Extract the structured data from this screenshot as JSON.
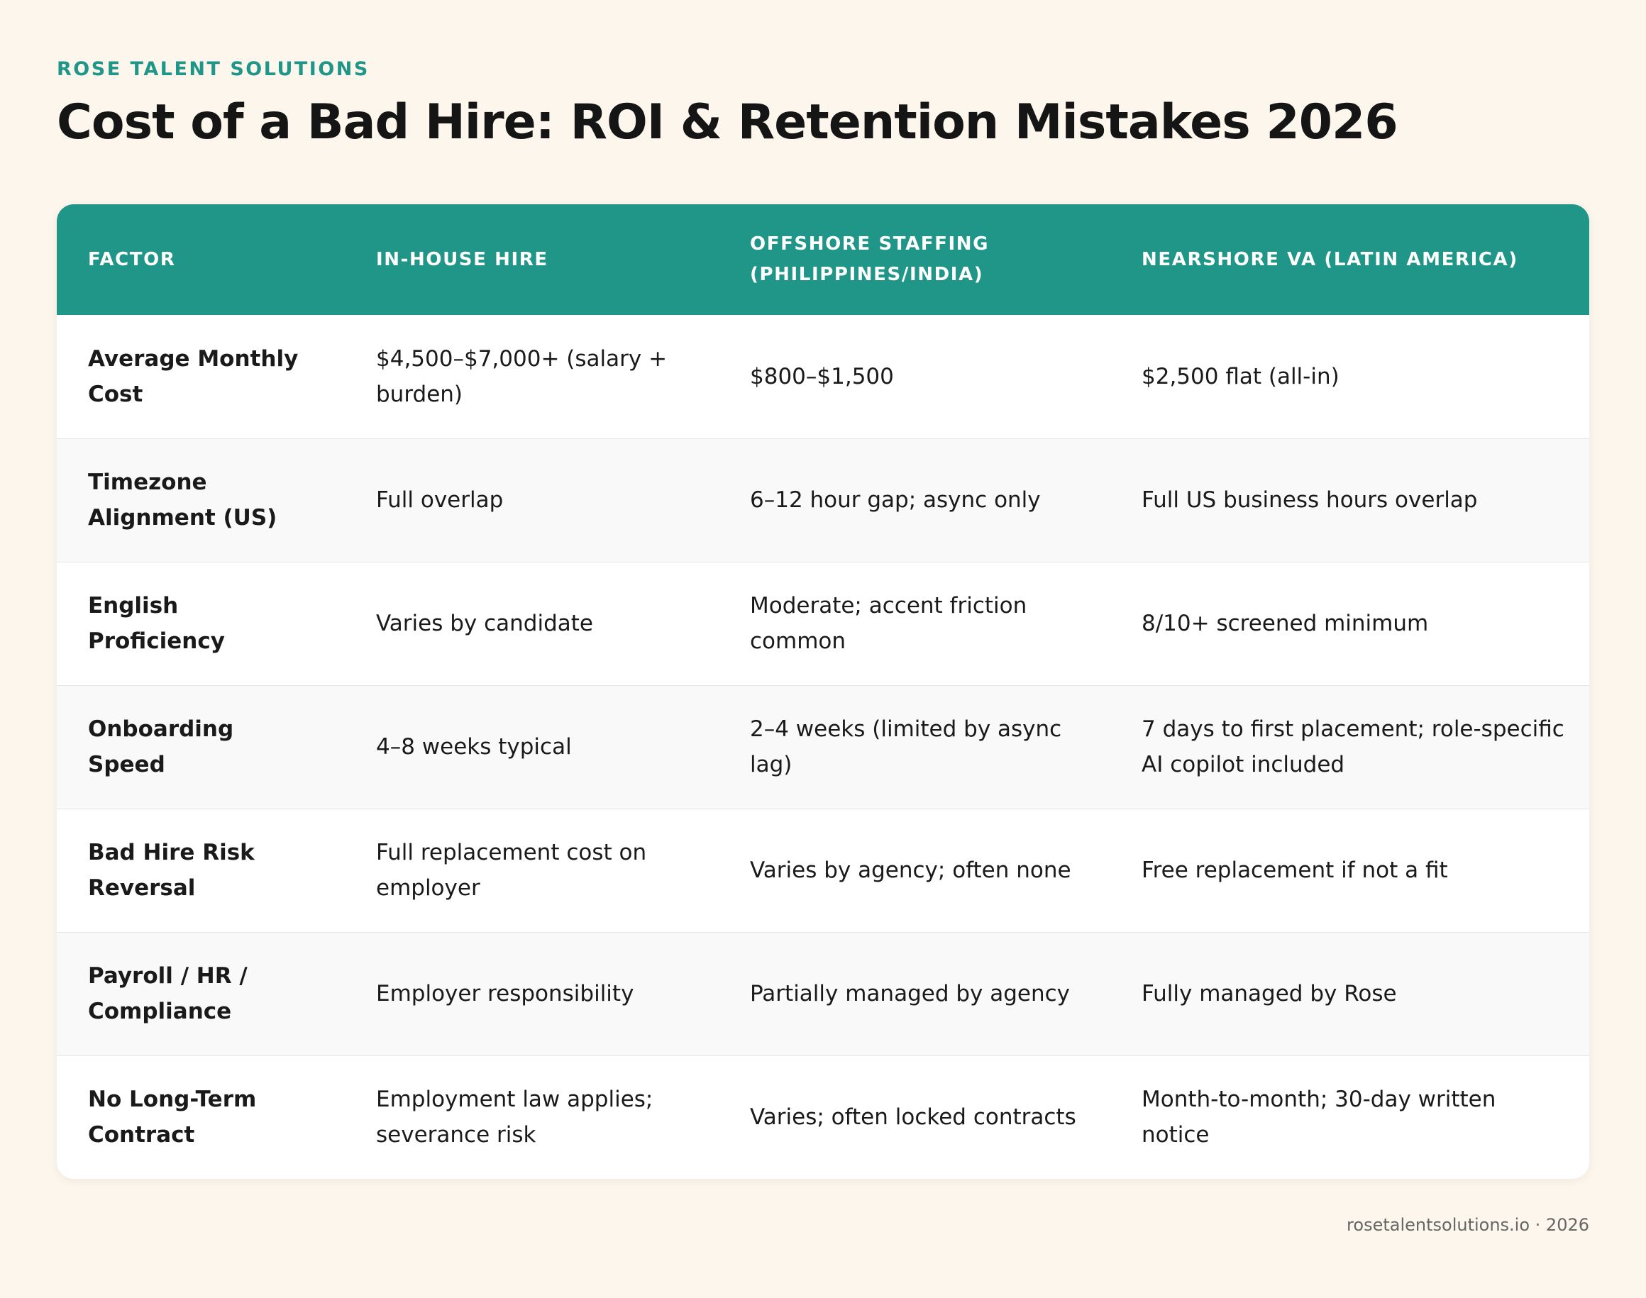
{
  "brand": "ROSE TALENT SOLUTIONS",
  "title": "Cost of a Bad Hire: ROI & Retention Mistakes 2026",
  "table": {
    "headers": [
      "FACTOR",
      "IN-HOUSE HIRE",
      "OFFSHORE STAFFING (PHILIPPINES/INDIA)",
      "NEARSHORE VA (LATIN AMERICA)"
    ],
    "rows": [
      [
        "Average Monthly Cost",
        "$4,500–$7,000+ (salary + burden)",
        "$800–$1,500",
        "$2,500 flat (all-in)"
      ],
      [
        "Timezone Alignment (US)",
        "Full overlap",
        "6–12 hour gap; async only",
        "Full US business hours overlap"
      ],
      [
        "English Proficiency",
        "Varies by candidate",
        "Moderate; accent friction common",
        "8/10+ screened minimum"
      ],
      [
        "Onboarding Speed",
        "4–8 weeks typical",
        "2–4 weeks (limited by async lag)",
        "7 days to first placement; role-specific AI copilot included"
      ],
      [
        "Bad Hire Risk Reversal",
        "Full replacement cost on employer",
        "Varies by agency; often none",
        "Free replacement if not a fit"
      ],
      [
        "Payroll / HR / Compliance",
        "Employer responsibility",
        "Partially managed by agency",
        "Fully managed by Rose"
      ],
      [
        "No Long-Term Contract",
        "Employment law applies; severance risk",
        "Varies; often locked contracts",
        "Month-to-month; 30-day written notice"
      ]
    ]
  },
  "footer": "rosetalentsolutions.io · 2026",
  "colors": {
    "accent": "#1f9688",
    "background": "#fdf6ec",
    "card": "#ffffff",
    "row_alt": "#f9f9f9"
  }
}
